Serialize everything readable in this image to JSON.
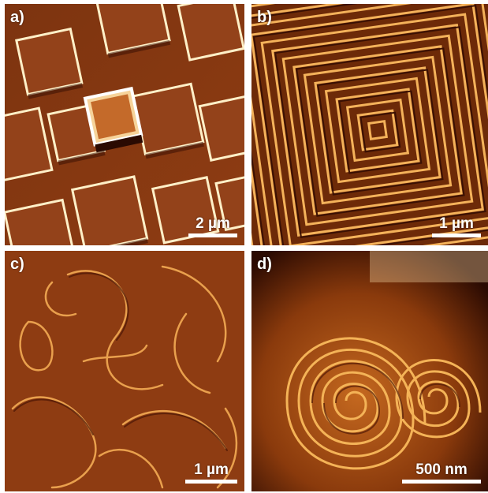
{
  "figure": {
    "colormap": {
      "dark": "#3a1003",
      "base": "#8a3a0f",
      "mid": "#b0561a",
      "light": "#e7a14a",
      "highlight": "#fff1c9"
    },
    "panels": [
      {
        "label": "a)",
        "scale_text": "2 µm"
      },
      {
        "label": "b)",
        "scale_text": "1 µm"
      },
      {
        "label": "c)",
        "scale_text": "1 µm"
      },
      {
        "label": "d)",
        "scale_text": "500 nm"
      }
    ]
  }
}
